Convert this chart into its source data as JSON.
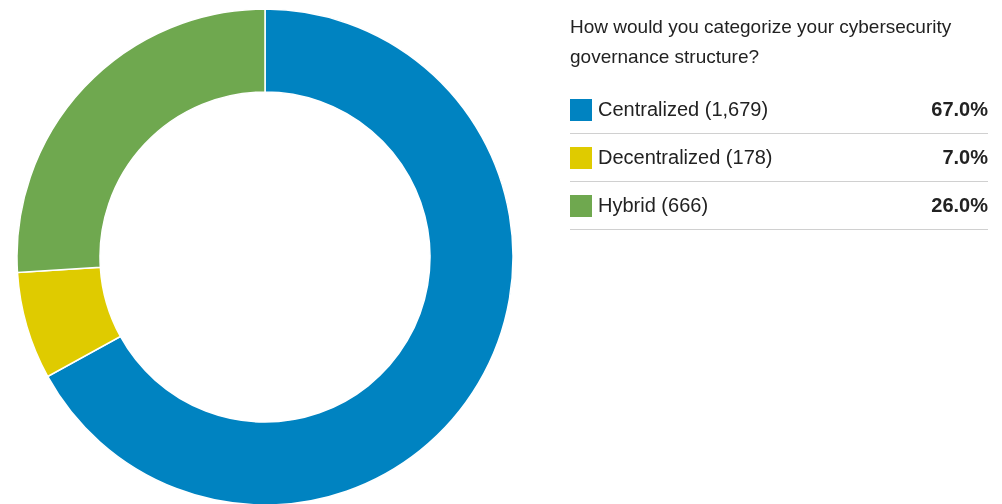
{
  "chart_data": {
    "type": "donut",
    "title": "How would you categorize your cybersecurity governance structure?",
    "categories": [
      "Centralized (1,679)",
      "Decentralized (178)",
      "Hybrid (666)"
    ],
    "values": [
      67.0,
      7.0,
      26.0
    ],
    "colors": [
      "#0083c1",
      "#dfcb00",
      "#6fa84f"
    ],
    "value_labels": [
      "67.0%",
      "7.0%",
      "26.0%"
    ],
    "legend": "right"
  }
}
